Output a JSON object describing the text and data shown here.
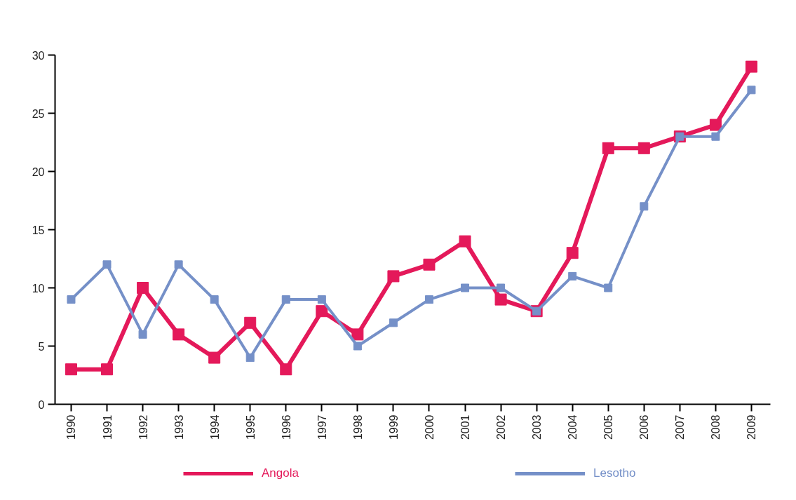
{
  "chart_data": {
    "type": "line",
    "categories": [
      "1990",
      "1991",
      "1992",
      "1993",
      "1994",
      "1995",
      "1996",
      "1997",
      "1998",
      "1999",
      "2000",
      "2001",
      "2002",
      "2003",
      "2004",
      "2005",
      "2006",
      "2007",
      "2008",
      "2009"
    ],
    "series": [
      {
        "name": "Angola",
        "color": "#e4195a",
        "values": [
          3,
          3,
          10,
          6,
          4,
          7,
          3,
          8,
          6,
          11,
          12,
          14,
          9,
          8,
          13,
          22,
          22,
          23,
          24,
          29
        ]
      },
      {
        "name": "Lesotho",
        "color": "#7590c8",
        "values": [
          9,
          12,
          6,
          12,
          9,
          4,
          9,
          9,
          5,
          7,
          9,
          10,
          10,
          8,
          11,
          10,
          17,
          23,
          23,
          27
        ]
      }
    ],
    "ylim": [
      0,
      30
    ],
    "yticks": [
      0,
      5,
      10,
      15,
      20,
      25,
      30
    ],
    "grid": false,
    "legend": "bottom",
    "marker": "square",
    "line_style": "solid"
  }
}
